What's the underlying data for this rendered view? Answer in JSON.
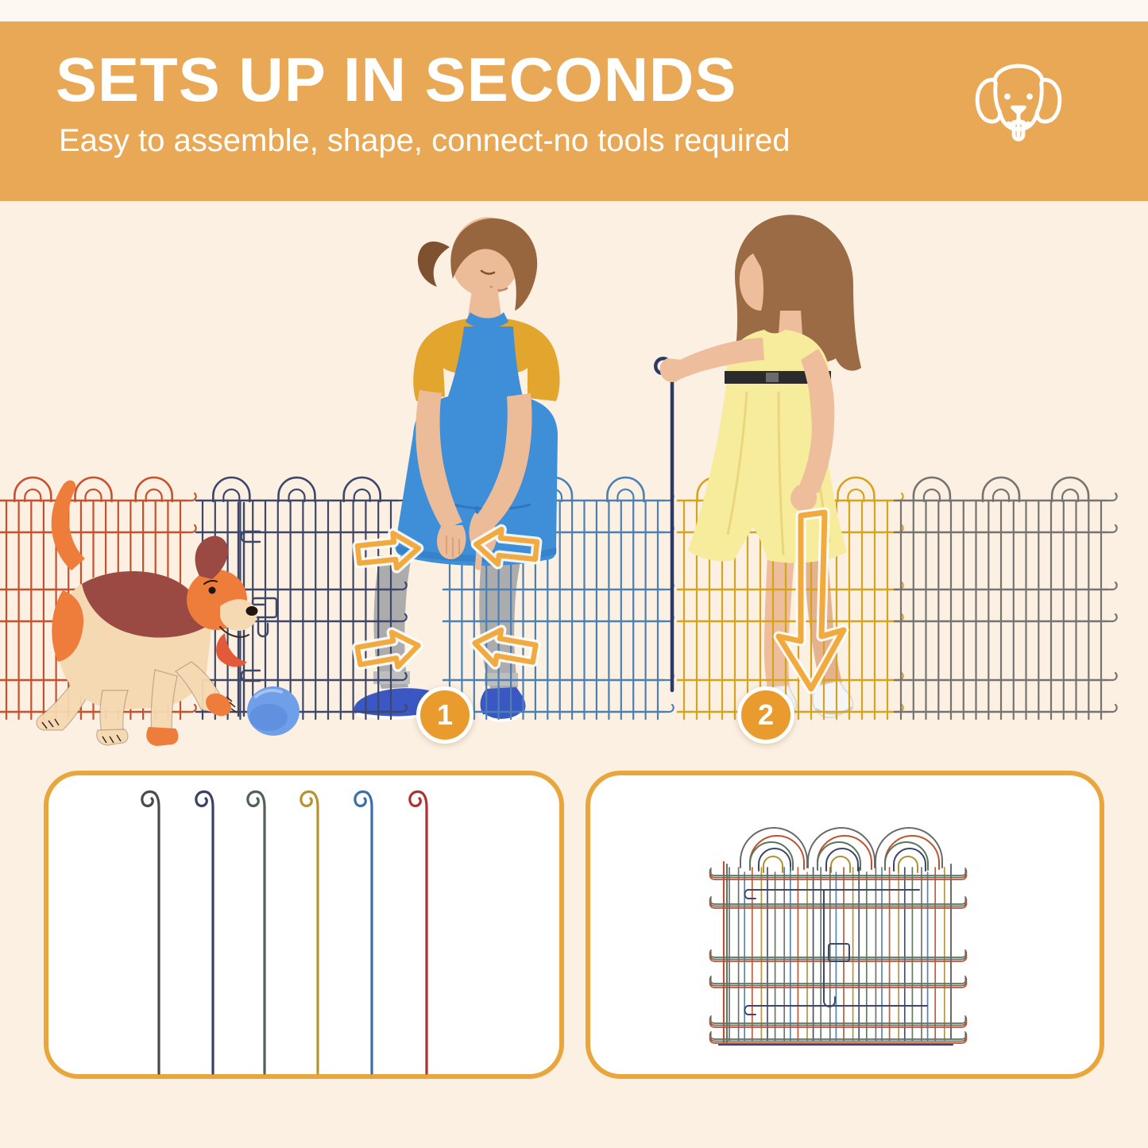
{
  "header": {
    "title": "SETS UP IN SECONDS",
    "subtitle": "Easy to assemble, shape, connect-no tools required",
    "background_color": "#E9A855",
    "text_color": "#FFFFFF",
    "icon": "dog-face-icon"
  },
  "scene": {
    "background_color": "#FBF0E2",
    "top_strip_color": "#FDF8F1",
    "arrow_color": "#F2A93E",
    "badge_color": "#E99B2E",
    "steps": [
      {
        "label": "1"
      },
      {
        "label": "2"
      }
    ],
    "fence_panels": [
      {
        "name": "red-panel",
        "color": "#C8502D"
      },
      {
        "name": "navy-door-panel",
        "color": "#3E4768"
      },
      {
        "name": "blue-panel",
        "color": "#4C80B3"
      },
      {
        "name": "yellow-panel",
        "color": "#D5A41F"
      },
      {
        "name": "gray-panel",
        "color": "#767472"
      }
    ],
    "connector_pin_color": "#2E3A66",
    "figures": {
      "assembler_woman": {
        "shirt": "#E2A52E",
        "apron": "#3F8FD8",
        "apron_dark": "#2F77BE",
        "jeans": "#ACACAC",
        "shoes": "#3A57C4",
        "hair": "#97663F",
        "skin": "#ECBB98"
      },
      "pinning_woman": {
        "dress": "#F7EB9C",
        "dress_shade": "#E8D478",
        "belt": "#2B2B2B",
        "shoes": "#F5F5F5",
        "hair": "#9A6B44",
        "skin": "#EDBD9C"
      },
      "puppy": {
        "body": "#F5D9B2",
        "patches": "#EE7D3C",
        "saddle": "#9A4A43",
        "tongue": "#E25A39"
      },
      "ball_color": "#6F9FE8"
    }
  },
  "cards": {
    "background_color": "#FFFFFF",
    "border_color": "#E8A63C",
    "stakes_card": {
      "name": "connector-stakes",
      "stake_colors": [
        "#4A4A4A",
        "#3A4168",
        "#4E6152",
        "#B5942F",
        "#3E6EA8",
        "#B03030"
      ]
    },
    "folded_card": {
      "name": "folded-panel-stack",
      "wire_colors": [
        "#6A6A6A",
        "#59755C",
        "#3E4768",
        "#B09035",
        "#C0512F",
        "#4C80B3"
      ]
    }
  }
}
